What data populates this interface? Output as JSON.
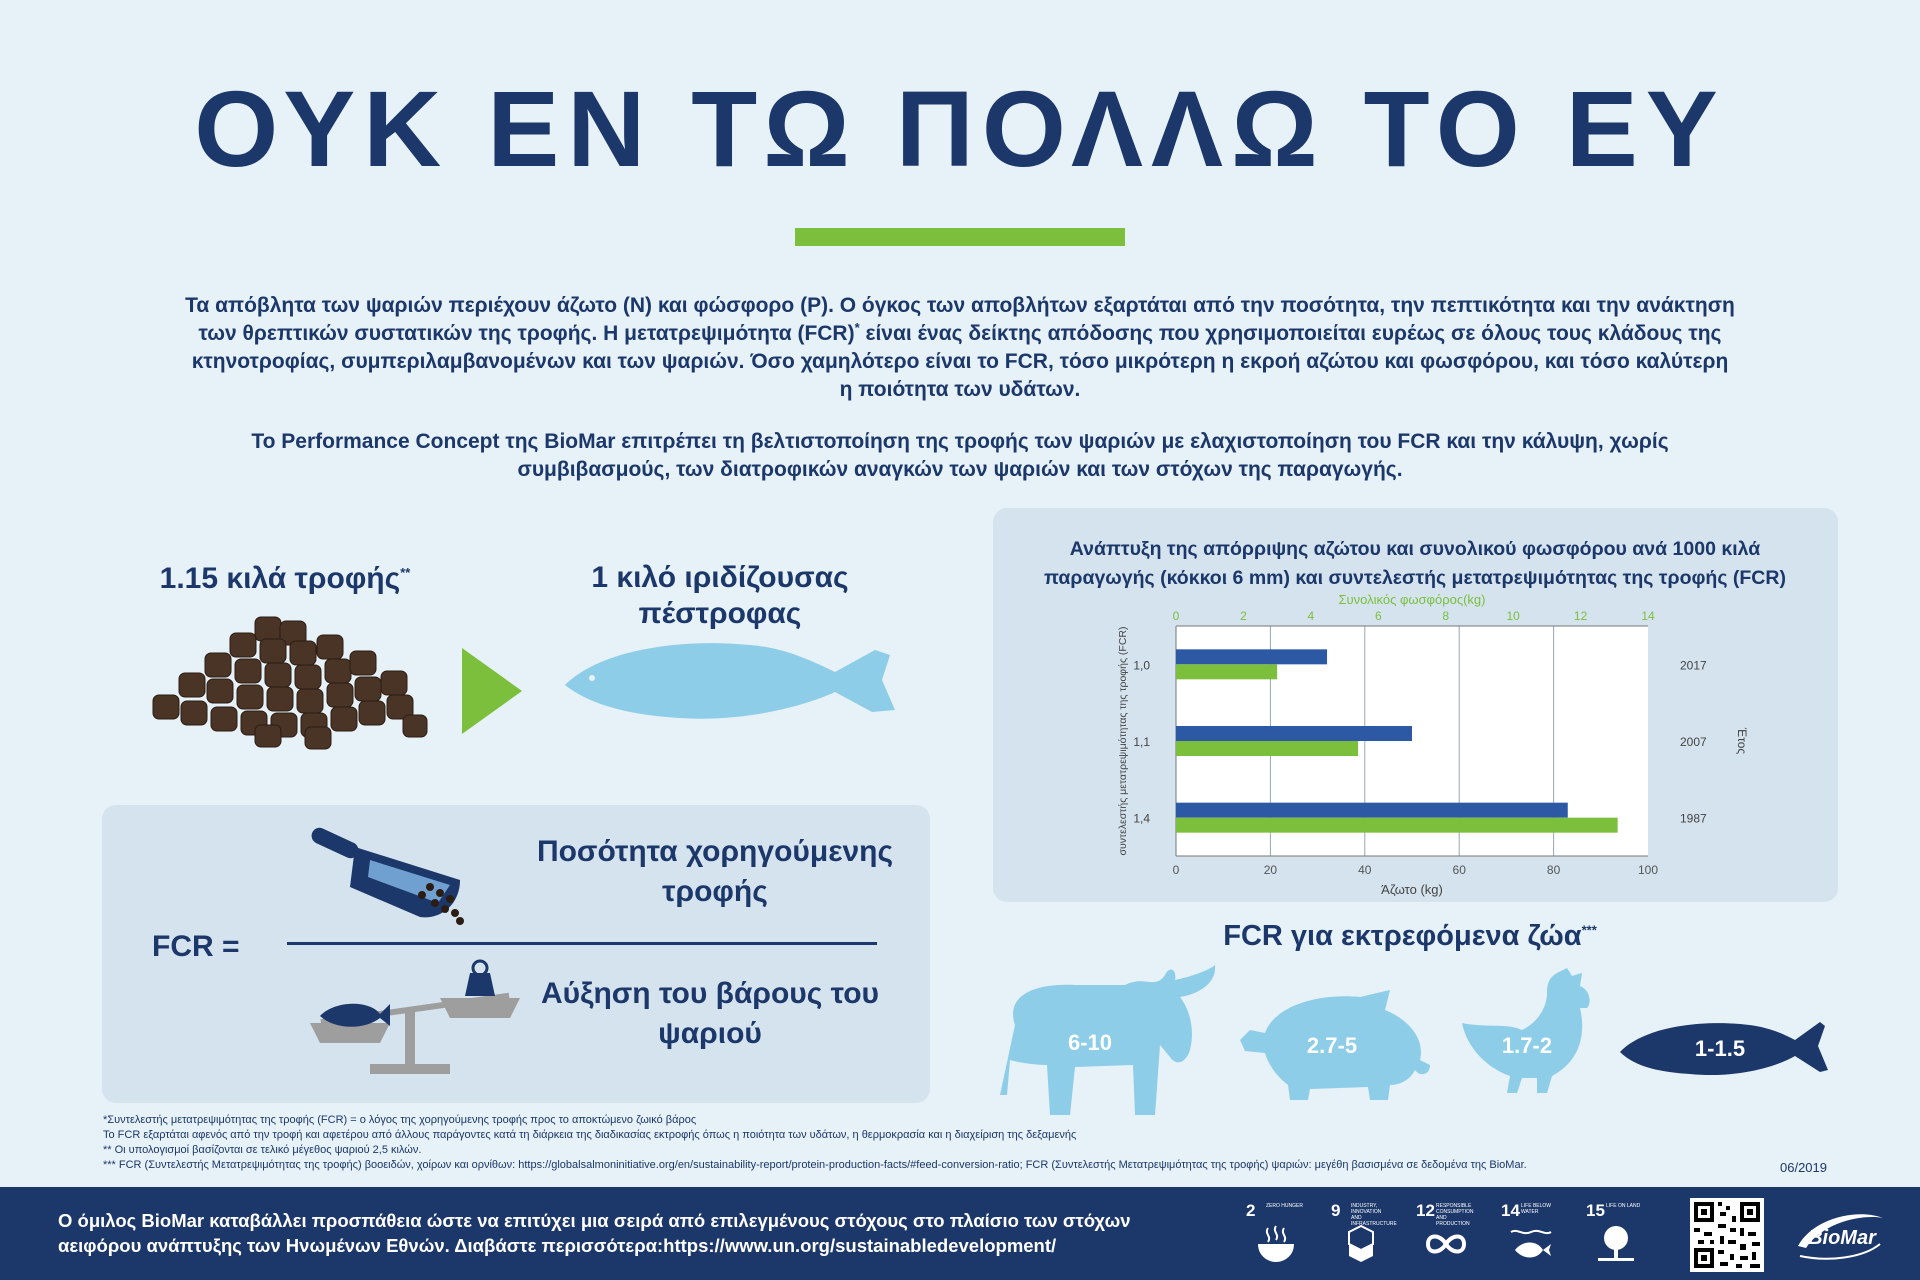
{
  "title": "ΟΥΚ ΕΝ ΤΩ ΠΟΛΛΩ ΤΟ ΕΥ",
  "intro": {
    "p1_line1": "Τα απόβλητα των ψαριών περιέχουν άζωτο (N) και φώσφορο (P). Ο όγκος των αποβλήτων εξαρτάται από την ποσότητα, την πεπτικότητα και την ανάκτηση",
    "p1_line2a": "των θρεπτικών συστατικών της τροφής. Η μετατρεψιμότητα (FCR)",
    "p1_line2_sup": "*",
    "p1_line2b": " είναι ένας δείκτης απόδοσης που χρησιμοποιείται ευρέως σε όλους τους κλάδους της",
    "p1_line3": "κτηνοτροφίας, συμπεριλαμβανομένων και των ψαριών. Όσο χαμηλότερο είναι το FCR, τόσο μικρότερη η εκροή αζώτου και φωσφόρου, και τόσο καλύτερη",
    "p1_line4": "η ποιότητα των υδάτων.",
    "p2_line1": "Το Performance Concept της BioMar επιτρέπει τη βελτιστοποίηση της τροφής των ψαριών με ελαχιστοποίηση του FCR και την κάλυψη, χωρίς",
    "p2_line2": "συμβιβασμούς, των διατροφικών αναγκών των ψαριών και των στόχων της παραγωγής."
  },
  "conversion": {
    "feed_label": "1.15 κιλά τροφής",
    "feed_sup": "**",
    "fish_label_line1": "1 κιλό ιριδίζουσας",
    "fish_label_line2": "πέστροφας"
  },
  "fcr": {
    "label": "FCR =",
    "numerator_line1": "Ποσότητα χορηγούμενης",
    "numerator_line2": "τροφής",
    "denominator_line1": "Αύξηση του βάρους του",
    "denominator_line2": "ψαριού"
  },
  "chart_data": {
    "type": "bar",
    "title_line1": "Ανάπτυξη της απόρριψης αζώτου και συνολικού φωσφόρου ανά 1000 κιλά",
    "title_line2": "παραγωγής (κόκκοι 6 mm) και συντελεστής μετατρεψιμότητας της τροφής (FCR)",
    "orientation": "horizontal",
    "categories": [
      "2017",
      "2007",
      "1987"
    ],
    "fcr_labels": [
      "1,0",
      "1,1",
      "1,4"
    ],
    "series": [
      {
        "name": "Άζωτο (kg)",
        "axis": "bottom",
        "color": "#2c58a4",
        "values": [
          32,
          50,
          83
        ]
      },
      {
        "name": "Συνολικός φωσφόρος(kg)",
        "axis": "top",
        "color": "#7bbf3d",
        "values": [
          3,
          5.4,
          13.1
        ]
      }
    ],
    "xlabel_bottom": "Άζωτο (kg)",
    "xlim_bottom": [
      0,
      100
    ],
    "xticks_bottom": [
      "0",
      "20",
      "40",
      "60",
      "80",
      "100"
    ],
    "xlabel_top": "Συνολικός φωσφόρος(kg)",
    "xlim_top": [
      0,
      14
    ],
    "xticks_top": [
      "0",
      "2",
      "4",
      "6",
      "8",
      "10",
      "12",
      "14"
    ],
    "ylabel_left": "συντελεστής μετατρεψιμότητας της τροφής (FCR)",
    "ylabel_right": "Έτος",
    "grid": true
  },
  "animals": {
    "title": "FCR για εκτρεφόμενα ζώα",
    "title_sup": "***",
    "cow": "6-10",
    "pig": "2.7-5",
    "chicken": "1.7-2",
    "fish": "1-1.5"
  },
  "footnotes": {
    "f1": "*Συντελεστής μετατρεψιμότητας της τροφής (FCR) = ο λόγος της χορηγούμενης τροφής προς το αποκτώμενο ζωικό βάρος",
    "f2": "Το FCR εξαρτάται αφενός από την τροφή και αφετέρου από άλλους παράγοντες κατά τη διάρκεια της διαδικασίας εκτροφής όπως η ποιότητα των υδάτων, η θερμοκρασία και η διαχείριση της δεξαμενής",
    "f3": "** Οι υπολογισμοί βασίζονται σε τελικό μέγεθος ψαριού 2,5 κιλών.",
    "f4": "*** FCR (Συντελεστής Μετατρεψιμότητας της τροφής) βοοειδών, χοίρων και ορνίθων: https://globalsalmoninitiative.org/en/sustainability-report/protein-production-facts/#feed-conversion-ratio; FCR (Συντελεστής Μετατρεψιμότητας της τροφής) ψαριών: μεγέθη βασισμένα σε δεδομένα της BioMar.",
    "date": "06/2019"
  },
  "footer": {
    "line1": "Ο όμιλος BioMar καταβάλλει προσπάθεια ώστε να επιτύχει μια σειρά από επιλεγμένους στόχους στο πλαίσιο των στόχων",
    "line2": "αειφόρου ανάπτυξης των Ηνωμένων Εθνών. Διαβάστε περισσότερα:https://www.un.org/sustainabledevelopment/",
    "sdgs": [
      {
        "num": "2",
        "caption": "ZERO HUNGER",
        "color": "#d3a029"
      },
      {
        "num": "9",
        "caption": "INDUSTRY, INNOVATION AND INFRASTRUCTURE",
        "color": "#f36d25"
      },
      {
        "num": "12",
        "caption": "RESPONSIBLE CONSUMPTION AND PRODUCTION",
        "color": "#bf8b2e"
      },
      {
        "num": "14",
        "caption": "LIFE BELOW WATER",
        "color": "#0a97d9"
      },
      {
        "num": "15",
        "caption": "LIFE ON LAND",
        "color": "#56c02b"
      }
    ],
    "logo": "BioMar"
  }
}
